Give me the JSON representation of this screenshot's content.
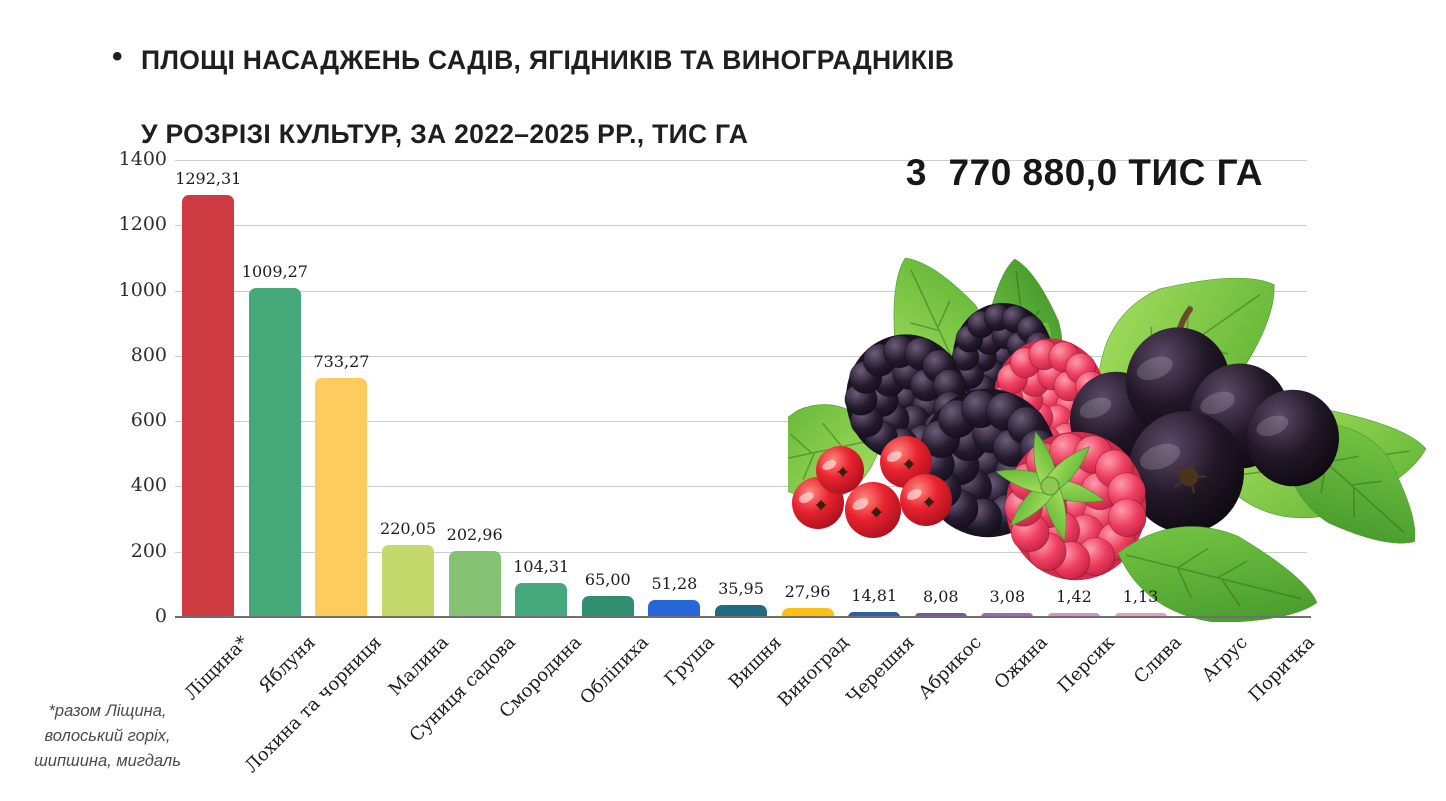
{
  "title": {
    "bullet": "•",
    "line1": "ПЛОЩІ НАСАДЖЕНЬ САДІВ, ЯГІДНИКІВ ТА ВИНОГРАДНИКІВ",
    "line2": "У РОЗРІЗІ КУЛЬТУР, ЗА 2022–2025 РР., ТИС ГА"
  },
  "total_label": "3  770 880,0 ТИС ГА",
  "footnote": {
    "line1": "*разом Ліщина,",
    "line2": "волоський горіх,",
    "line3": "шипшина, мигдаль"
  },
  "decor": {
    "berries_image": "photo collage of blackberries, raspberries, red currants, black currants and green leaves"
  },
  "colors": {
    "title_text": "#1f1f1f",
    "gridline": "#cdcdcd",
    "axis_line": "#6f6f6f",
    "tick_text": "#2d2d2d",
    "footnote_text": "#4a4a4a"
  },
  "chart_data": {
    "type": "bar",
    "title": "ПЛОЩІ НАСАДЖЕНЬ САДІВ, ЯГІДНИКІВ ТА ВИНОГРАДНИКІВ У РОЗРІЗІ КУЛЬТУР, ЗА 2022–2025 РР., ТИС ГА",
    "units": "тис га",
    "annotation_total": "3 770 880,0 ТИС ГА",
    "ylim": [
      0,
      1400
    ],
    "yticks": [
      0,
      200,
      400,
      600,
      800,
      1000,
      1200,
      1400
    ],
    "grid": true,
    "legend": "none",
    "categories": [
      "Ліщина*",
      "Яблуня",
      "Лохина та чорниця",
      "Малина",
      "Суниця садова",
      "Смородина",
      "Обліпиха",
      "Груша",
      "Вишня",
      "Виноград",
      "Черешня",
      "Абрикос",
      "Ожина",
      "Персик",
      "Слива",
      "Аґрус",
      "Поричка"
    ],
    "values": [
      1292.31,
      1009.27,
      733.27,
      220.05,
      202.96,
      104.31,
      65.0,
      51.28,
      35.95,
      27.96,
      14.81,
      8.08,
      3.08,
      1.42,
      1.13,
      null,
      null
    ],
    "value_labels": [
      "1292,31",
      "1009,27",
      "733,27",
      "220,05",
      "202,96",
      "104,31",
      "65,00",
      "51,28",
      "35,95",
      "27,96",
      "14,81",
      "8,08",
      "3,08",
      "1,42",
      "1,13",
      "",
      ""
    ],
    "bar_colors": [
      "#ce3a41",
      "#45a878",
      "#fdcb5e",
      "#c5d86c",
      "#85c274",
      "#45a87c",
      "#2f8f6e",
      "#2567d9",
      "#226a80",
      "#fcbf13",
      "#2d5fa7",
      "#7257a8",
      "#a266b4",
      "#d98fcd",
      "#ee9cc3",
      "#ee9cc3",
      "#ee9cc3"
    ]
  }
}
